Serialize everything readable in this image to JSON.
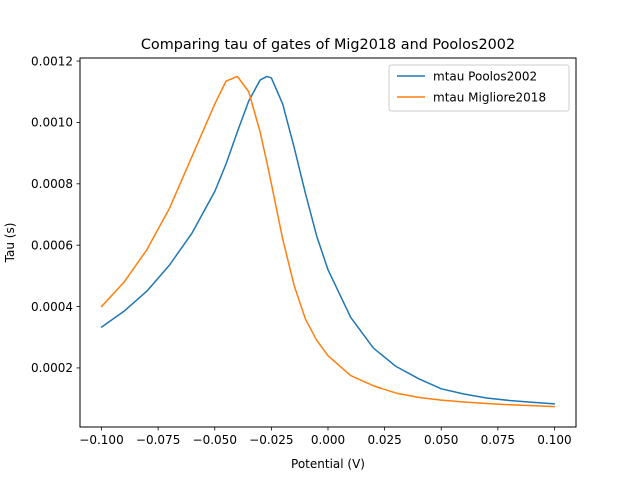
{
  "chart_data": {
    "type": "line",
    "title": "Comparing tau of gates of Mig2018 and Poolos2002",
    "xlabel": "Potential (V)",
    "ylabel": "Tau (s)",
    "xlim": [
      -0.1095,
      0.1095
    ],
    "ylim": [
      7.5e-06,
      0.00121
    ],
    "grid": false,
    "legend_position": "upper right",
    "x_ticks": [
      -0.1,
      -0.075,
      -0.05,
      -0.025,
      0.0,
      0.025,
      0.05,
      0.075,
      0.1
    ],
    "x_tick_labels": [
      "−0.100",
      "−0.075",
      "−0.050",
      "−0.025",
      "0.000",
      "0.025",
      "0.050",
      "0.075",
      "0.100"
    ],
    "y_ticks": [
      0.0002,
      0.0004,
      0.0006,
      0.0008,
      0.001,
      0.0012
    ],
    "y_tick_labels": [
      "0.0002",
      "0.0004",
      "0.0006",
      "0.0008",
      "0.0010",
      "0.0012"
    ],
    "x": [
      -0.1,
      -0.09,
      -0.08,
      -0.07,
      -0.06,
      -0.05,
      -0.045,
      -0.04,
      -0.035,
      -0.03,
      -0.027,
      -0.025,
      -0.02,
      -0.015,
      -0.01,
      -0.005,
      0.0,
      0.01,
      0.02,
      0.03,
      0.04,
      0.05,
      0.06,
      0.07,
      0.08,
      0.09,
      0.1
    ],
    "series": [
      {
        "name": "mtau Poolos2002",
        "color": "#1f77b4",
        "values": [
          0.000333,
          0.000385,
          0.00045,
          0.000535,
          0.00064,
          0.000775,
          0.000865,
          0.00097,
          0.00107,
          0.001138,
          0.00115,
          0.001145,
          0.00106,
          0.00092,
          0.00077,
          0.00063,
          0.00052,
          0.000365,
          0.000265,
          0.000205,
          0.000165,
          0.000132,
          0.000115,
          0.000102,
          9.4e-05,
          8.8e-05,
          8.3e-05
        ]
      },
      {
        "name": "mtau Migliore2018",
        "color": "#ff7f0e",
        "values": [
          0.0004,
          0.00048,
          0.000585,
          0.00072,
          0.00089,
          0.00106,
          0.001135,
          0.00115,
          0.0011,
          0.00097,
          0.00087,
          0.0008,
          0.00062,
          0.00047,
          0.00036,
          0.00029,
          0.00024,
          0.000175,
          0.000142,
          0.000118,
          0.000104,
          9.5e-05,
          8.9e-05,
          8.4e-05,
          8e-05,
          7.7e-05,
          7.4e-05
        ]
      }
    ]
  }
}
